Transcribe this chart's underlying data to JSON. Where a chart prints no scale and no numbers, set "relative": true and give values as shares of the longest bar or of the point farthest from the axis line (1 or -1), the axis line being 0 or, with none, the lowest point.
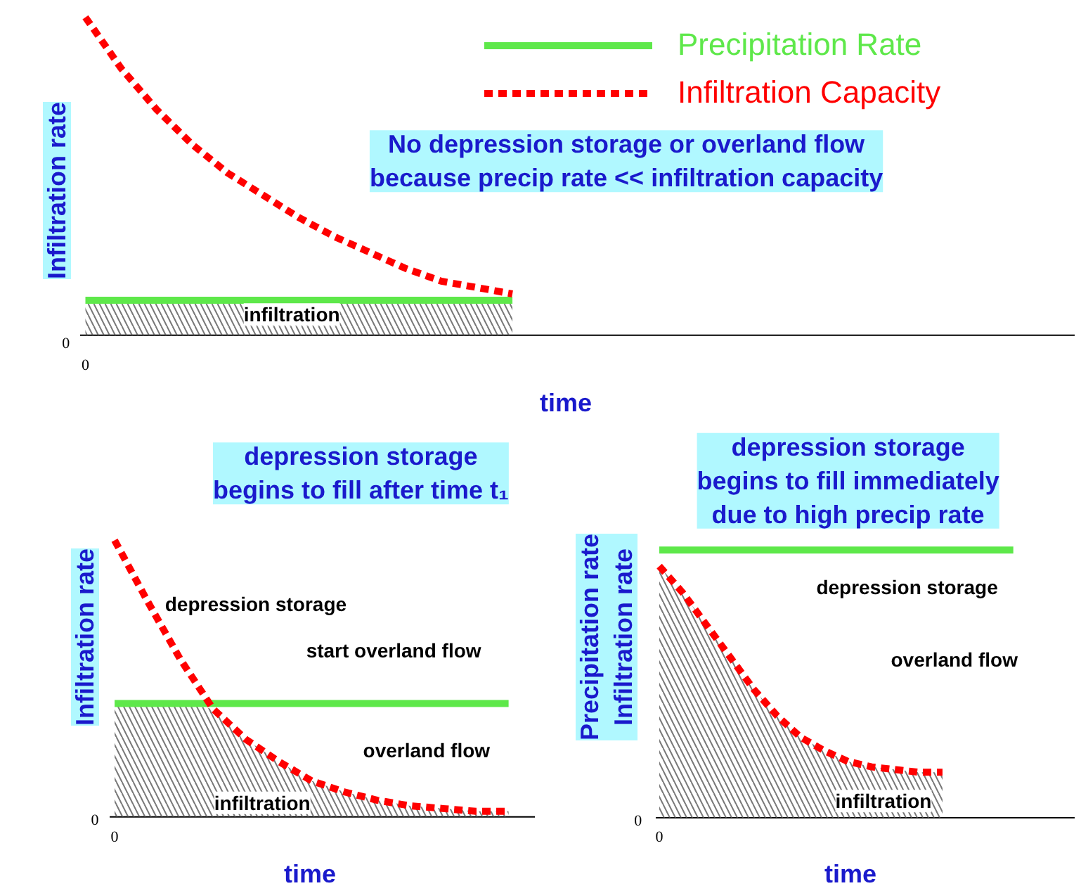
{
  "chart_data": [
    {
      "type": "line",
      "relative": true,
      "tick_labels": false,
      "ylabel": "Infiltration rate",
      "xlabel": "time",
      "legend": "top right",
      "categories": [
        null,
        null,
        null,
        null,
        null,
        null,
        null,
        null,
        null,
        null,
        null,
        null,
        null
      ],
      "series": [
        {
          "type": "area",
          "name": "Precipitation Rate",
          "color": "#5ee84a",
          "line_style": "solid",
          "values": [
            0.11,
            0.11,
            0.11,
            0.11,
            0.11,
            0.11,
            0.11,
            0.11,
            0.11,
            0.11,
            0.11,
            0.11,
            0.11
          ]
        },
        {
          "name": "Infiltration Capacity",
          "color": "#ff0000",
          "line_style": "dashed",
          "values": [
            1.0,
            0.84,
            0.71,
            0.6,
            0.51,
            0.44,
            0.37,
            0.31,
            0.26,
            0.21,
            0.17,
            0.15,
            0.13
          ]
        }
      ],
      "annotations": [
        "No depression storage or overland flow\nbecause precip rate << infiltration capacity",
        "infiltration",
        "0",
        "0"
      ]
    },
    {
      "type": "line",
      "relative": true,
      "tick_labels": false,
      "ylabel": "Infiltration rate",
      "xlabel": "time",
      "categories": [
        null,
        null,
        null,
        null,
        null,
        null,
        null,
        null,
        null,
        null,
        null,
        null,
        null
      ],
      "series": [
        {
          "type": "area",
          "color": "#555555",
          "values": [
            0.41,
            0.41,
            0.41,
            0.39,
            0.28,
            0.2,
            0.13,
            0.09,
            0.06,
            0.04,
            0.03,
            0.02,
            0.02
          ]
        },
        {
          "color": "#5ee84a",
          "line_style": "solid",
          "values": [
            0.41,
            0.41,
            0.41,
            0.41,
            0.41,
            0.41,
            0.41,
            0.41,
            0.41,
            0.41,
            0.41,
            0.41,
            0.41
          ]
        },
        {
          "color": "#ff0000",
          "line_style": "dashed",
          "values": [
            1.0,
            0.78,
            0.57,
            0.39,
            0.28,
            0.2,
            0.13,
            0.09,
            0.06,
            0.04,
            0.03,
            0.02,
            0.02
          ]
        }
      ],
      "annotations": [
        "depression storage\nbegins to fill after time t₁",
        "depression storage",
        "start overland flow",
        "overland flow",
        "infiltration",
        "0",
        "0"
      ]
    },
    {
      "type": "line",
      "relative": true,
      "tick_labels": false,
      "ylabel": "Precipitation rate\nInfiltration rate",
      "xlabel": "time",
      "categories": [
        null,
        null,
        null,
        null,
        null,
        null,
        null,
        null,
        null,
        null,
        null,
        null,
        null,
        null,
        null,
        null
      ],
      "series": [
        {
          "color": "#5ee84a",
          "line_style": "solid",
          "values": [
            1,
            1,
            1,
            1,
            1,
            1,
            1,
            1,
            1,
            1,
            1,
            1,
            1,
            1,
            1,
            1
          ]
        },
        {
          "type": "area",
          "color": "#ff0000",
          "line_style": "dashed",
          "values": [
            0.94,
            0.84,
            0.72,
            0.6,
            0.48,
            0.38,
            0.3,
            0.25,
            0.21,
            0.19,
            0.18,
            0.17,
            0.17,
            null,
            null,
            null
          ]
        }
      ],
      "annotations": [
        "depression storage\nbegins to fill immediately\ndue to high precip rate",
        "depression storage",
        "overland flow",
        "infiltration",
        "0",
        "0"
      ]
    }
  ]
}
